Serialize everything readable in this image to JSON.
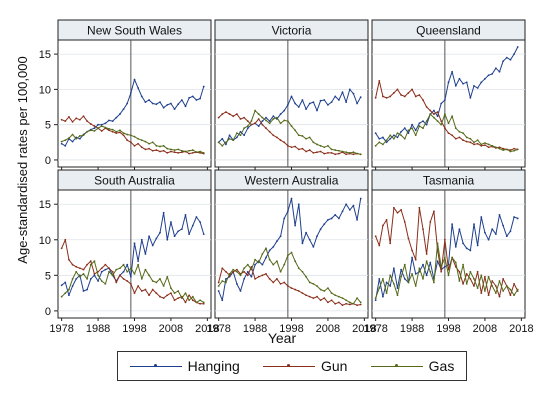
{
  "chart_data": {
    "type": "line",
    "ylabel": "Age-standardised rates per 100,000",
    "xlabel": "Year",
    "xlim": [
      1977,
      2019
    ],
    "ylim": [
      -1,
      17
    ],
    "xticks": [
      "1978",
      "1988",
      "1998",
      "2008",
      "2018"
    ],
    "yticks": [
      "0",
      "5",
      "10",
      "15"
    ],
    "reference_line_x": 1997,
    "grid": true,
    "legend_position": "bottom",
    "years": [
      1978,
      1979,
      1980,
      1981,
      1982,
      1983,
      1984,
      1985,
      1986,
      1987,
      1988,
      1989,
      1990,
      1991,
      1992,
      1993,
      1994,
      1995,
      1996,
      1997,
      1998,
      1999,
      2000,
      2001,
      2002,
      2003,
      2004,
      2005,
      2006,
      2007,
      2008,
      2009,
      2010,
      2011,
      2012,
      2013,
      2014,
      2015,
      2016,
      2017
    ],
    "series_meta": [
      {
        "name": "Hanging",
        "color": "#1f3f8f"
      },
      {
        "name": "Gun",
        "color": "#8b2e1a"
      },
      {
        "name": "Gas",
        "color": "#556b1a"
      }
    ],
    "panels": [
      {
        "title": "New South Wales",
        "Hanging": [
          2.3,
          2.0,
          3.0,
          2.6,
          3.2,
          3.0,
          3.6,
          4.0,
          4.3,
          4.5,
          5.0,
          5.0,
          5.2,
          5.6,
          5.5,
          6.0,
          6.5,
          7.2,
          8.0,
          9.5,
          11.4,
          10.2,
          9.0,
          8.2,
          8.5,
          8.0,
          7.9,
          8.2,
          7.4,
          7.8,
          8.0,
          7.2,
          7.9,
          8.5,
          7.6,
          8.8,
          9.0,
          8.5,
          8.7,
          10.4
        ],
        "Gun": [
          5.7,
          5.5,
          6.1,
          5.4,
          5.9,
          5.7,
          6.2,
          5.5,
          5.1,
          4.8,
          4.5,
          4.1,
          4.5,
          4.2,
          4.0,
          3.8,
          3.9,
          3.5,
          2.8,
          2.5,
          2.0,
          2.3,
          1.8,
          1.5,
          1.6,
          1.3,
          1.4,
          1.2,
          1.3,
          1.0,
          1.2,
          1.1,
          1.0,
          1.1,
          1.2,
          0.9,
          1.0,
          1.1,
          1.0,
          0.9
        ],
        "Gas": [
          2.6,
          2.8,
          3.1,
          3.6,
          3.0,
          3.4,
          3.5,
          4.0,
          4.2,
          4.1,
          4.5,
          4.8,
          4.6,
          4.4,
          4.3,
          4.0,
          4.2,
          3.8,
          3.6,
          3.5,
          3.3,
          3.0,
          2.8,
          2.6,
          2.3,
          2.5,
          2.0,
          1.9,
          2.0,
          1.6,
          1.5,
          1.4,
          1.5,
          1.3,
          1.2,
          1.3,
          1.4,
          1.1,
          1.2,
          1.0
        ]
      },
      {
        "title": "Victoria",
        "Hanging": [
          2.5,
          3.0,
          2.2,
          3.5,
          2.8,
          3.2,
          4.0,
          3.5,
          4.5,
          5.0,
          5.2,
          4.8,
          5.5,
          6.0,
          5.5,
          6.2,
          5.8,
          6.5,
          7.0,
          7.8,
          9.0,
          8.0,
          7.5,
          8.5,
          7.2,
          8.0,
          8.2,
          7.0,
          8.4,
          8.5,
          7.8,
          8.2,
          9.0,
          8.5,
          9.6,
          8.2,
          10.0,
          9.4,
          8.0,
          8.9
        ],
        "Gun": [
          6.0,
          6.5,
          6.8,
          6.5,
          6.2,
          6.5,
          5.8,
          6.0,
          5.5,
          5.0,
          5.2,
          5.8,
          5.0,
          4.5,
          4.0,
          3.5,
          3.2,
          2.8,
          2.5,
          2.0,
          1.8,
          1.9,
          1.5,
          1.6,
          1.2,
          1.4,
          1.0,
          1.1,
          1.2,
          0.9,
          1.0,
          1.0,
          0.8,
          0.9,
          1.1,
          0.8,
          0.9,
          0.8,
          0.9,
          0.8
        ],
        "Gas": [
          2.5,
          2.0,
          2.5,
          3.0,
          2.8,
          3.8,
          3.5,
          4.5,
          4.8,
          5.5,
          7.0,
          6.5,
          6.0,
          5.6,
          5.2,
          5.8,
          6.0,
          5.2,
          5.6,
          5.5,
          4.8,
          4.2,
          3.5,
          3.4,
          3.0,
          3.2,
          2.5,
          2.2,
          2.0,
          1.8,
          2.0,
          1.5,
          1.4,
          1.3,
          1.2,
          1.1,
          1.0,
          1.1,
          0.9,
          0.8
        ]
      },
      {
        "title": "Queensland",
        "Hanging": [
          3.8,
          3.0,
          3.2,
          2.5,
          3.0,
          3.5,
          3.2,
          4.0,
          4.5,
          3.8,
          5.0,
          4.2,
          5.2,
          5.5,
          5.0,
          6.5,
          7.0,
          6.2,
          8.0,
          8.5,
          11.0,
          12.5,
          10.5,
          11.5,
          10.8,
          11.0,
          8.8,
          10.5,
          10.2,
          11.0,
          11.5,
          12.0,
          12.2,
          13.0,
          12.5,
          14.0,
          14.5,
          14.2,
          15.0,
          16.0
        ],
        "Gun": [
          8.8,
          11.2,
          9.0,
          8.8,
          9.0,
          9.5,
          10.0,
          9.2,
          9.0,
          9.5,
          10.0,
          9.0,
          9.2,
          8.5,
          7.5,
          7.0,
          6.5,
          6.8,
          5.5,
          4.5,
          3.8,
          3.5,
          3.0,
          3.2,
          2.8,
          2.6,
          2.5,
          2.2,
          2.3,
          2.0,
          2.1,
          1.8,
          1.9,
          1.7,
          1.8,
          1.6,
          1.5,
          1.4,
          1.6,
          1.5
        ],
        "Gas": [
          2.0,
          2.5,
          2.2,
          2.8,
          3.5,
          3.0,
          3.8,
          3.5,
          3.0,
          4.2,
          4.5,
          3.5,
          4.8,
          4.5,
          5.5,
          6.5,
          6.0,
          5.5,
          5.0,
          6.5,
          5.2,
          6.2,
          4.5,
          4.0,
          3.8,
          3.2,
          3.0,
          2.5,
          2.8,
          2.2,
          2.4,
          2.2,
          2.0,
          1.8,
          1.6,
          1.4,
          1.5,
          1.2,
          1.3,
          1.5
        ]
      },
      {
        "title": "South Australia",
        "Hanging": [
          3.6,
          4.0,
          2.2,
          3.5,
          4.5,
          5.0,
          2.8,
          3.0,
          4.5,
          5.0,
          4.2,
          5.5,
          5.8,
          6.0,
          5.0,
          4.2,
          5.0,
          5.5,
          6.5,
          4.8,
          9.5,
          7.0,
          10.0,
          8.0,
          10.5,
          9.2,
          10.2,
          11.0,
          13.8,
          10.0,
          12.5,
          10.5,
          11.2,
          11.5,
          13.5,
          10.8,
          12.0,
          13.2,
          12.5,
          10.8
        ],
        "Gun": [
          8.8,
          10.0,
          7.2,
          6.5,
          6.2,
          6.0,
          5.8,
          6.5,
          7.0,
          5.2,
          5.5,
          6.0,
          6.5,
          6.0,
          5.5,
          4.0,
          5.0,
          4.5,
          4.2,
          3.8,
          2.5,
          3.5,
          2.8,
          3.0,
          2.2,
          3.0,
          2.5,
          2.0,
          1.8,
          2.2,
          2.5,
          1.5,
          1.8,
          2.0,
          1.2,
          2.2,
          1.5,
          1.2,
          1.0,
          1.0
        ],
        "Gas": [
          2.0,
          2.5,
          3.0,
          4.5,
          5.5,
          4.8,
          5.2,
          4.5,
          6.5,
          7.0,
          5.0,
          4.2,
          3.8,
          5.5,
          5.0,
          5.8,
          6.0,
          6.5,
          5.5,
          6.0,
          5.2,
          6.5,
          4.5,
          5.8,
          5.0,
          4.2,
          4.0,
          4.5,
          3.5,
          4.8,
          3.2,
          2.5,
          2.8,
          1.8,
          2.5,
          1.5,
          2.0,
          1.2,
          1.5,
          1.2
        ]
      },
      {
        "title": "Western Australia",
        "Hanging": [
          2.8,
          1.5,
          4.5,
          4.8,
          5.5,
          3.8,
          2.8,
          4.5,
          5.5,
          4.8,
          6.5,
          7.0,
          6.5,
          7.5,
          8.5,
          9.0,
          9.8,
          10.5,
          13.0,
          14.0,
          15.8,
          12.0,
          15.0,
          9.5,
          11.0,
          10.0,
          9.0,
          10.5,
          11.5,
          12.2,
          12.8,
          13.0,
          13.5,
          13.0,
          14.0,
          15.0,
          14.2,
          14.8,
          12.8,
          15.8
        ],
        "Gun": [
          4.0,
          6.0,
          5.5,
          5.0,
          5.5,
          5.8,
          5.2,
          5.5,
          5.0,
          6.2,
          4.5,
          4.8,
          5.0,
          5.2,
          4.5,
          4.0,
          4.5,
          3.8,
          4.0,
          3.5,
          3.2,
          3.0,
          2.8,
          2.5,
          2.2,
          2.0,
          1.8,
          2.0,
          1.5,
          1.8,
          1.2,
          1.5,
          1.0,
          1.2,
          0.8,
          1.0,
          0.9,
          1.0,
          0.8,
          0.9
        ],
        "Gas": [
          3.5,
          4.2,
          4.0,
          5.2,
          5.8,
          5.5,
          5.0,
          6.0,
          6.5,
          5.8,
          7.2,
          6.8,
          8.0,
          8.8,
          7.2,
          6.5,
          7.0,
          5.5,
          6.5,
          7.8,
          8.2,
          7.0,
          6.0,
          5.5,
          4.8,
          4.0,
          3.8,
          3.5,
          3.0,
          2.8,
          3.2,
          2.5,
          2.2,
          2.0,
          1.8,
          1.5,
          1.2,
          1.0,
          1.8,
          1.2
        ]
      },
      {
        "title": "Tasmania",
        "Hanging": [
          1.5,
          4.5,
          2.0,
          4.0,
          3.5,
          6.0,
          3.2,
          5.8,
          4.5,
          4.0,
          7.5,
          5.2,
          5.5,
          6.5,
          5.0,
          6.8,
          4.5,
          7.0,
          5.8,
          6.2,
          6.5,
          12.2,
          9.0,
          11.5,
          9.5,
          8.8,
          8.5,
          12.2,
          9.2,
          13.2,
          11.0,
          10.0,
          11.5,
          10.8,
          13.5,
          12.0,
          10.5,
          11.2,
          13.2,
          13.0
        ],
        "Gun": [
          10.5,
          9.2,
          12.0,
          12.8,
          9.5,
          14.5,
          13.8,
          14.2,
          12.5,
          10.2,
          8.5,
          7.2,
          14.5,
          11.5,
          8.0,
          12.5,
          14.0,
          8.5,
          5.5,
          10.0,
          5.8,
          7.5,
          6.2,
          5.5,
          3.8,
          5.2,
          4.5,
          3.5,
          5.5,
          2.5,
          4.8,
          2.2,
          4.2,
          3.5,
          2.0,
          4.5,
          3.5,
          2.2,
          3.8,
          2.8
        ],
        "Gas": [
          1.8,
          3.2,
          4.5,
          2.5,
          5.0,
          3.8,
          2.2,
          4.8,
          6.5,
          4.0,
          5.2,
          3.5,
          6.0,
          4.5,
          7.0,
          5.5,
          4.0,
          9.5,
          6.2,
          7.5,
          5.0,
          7.5,
          6.8,
          4.2,
          6.5,
          3.8,
          5.5,
          4.5,
          3.2,
          5.0,
          2.8,
          4.8,
          3.5,
          2.5,
          4.2,
          2.8,
          3.5,
          3.0,
          2.2,
          3.0
        ]
      }
    ]
  }
}
